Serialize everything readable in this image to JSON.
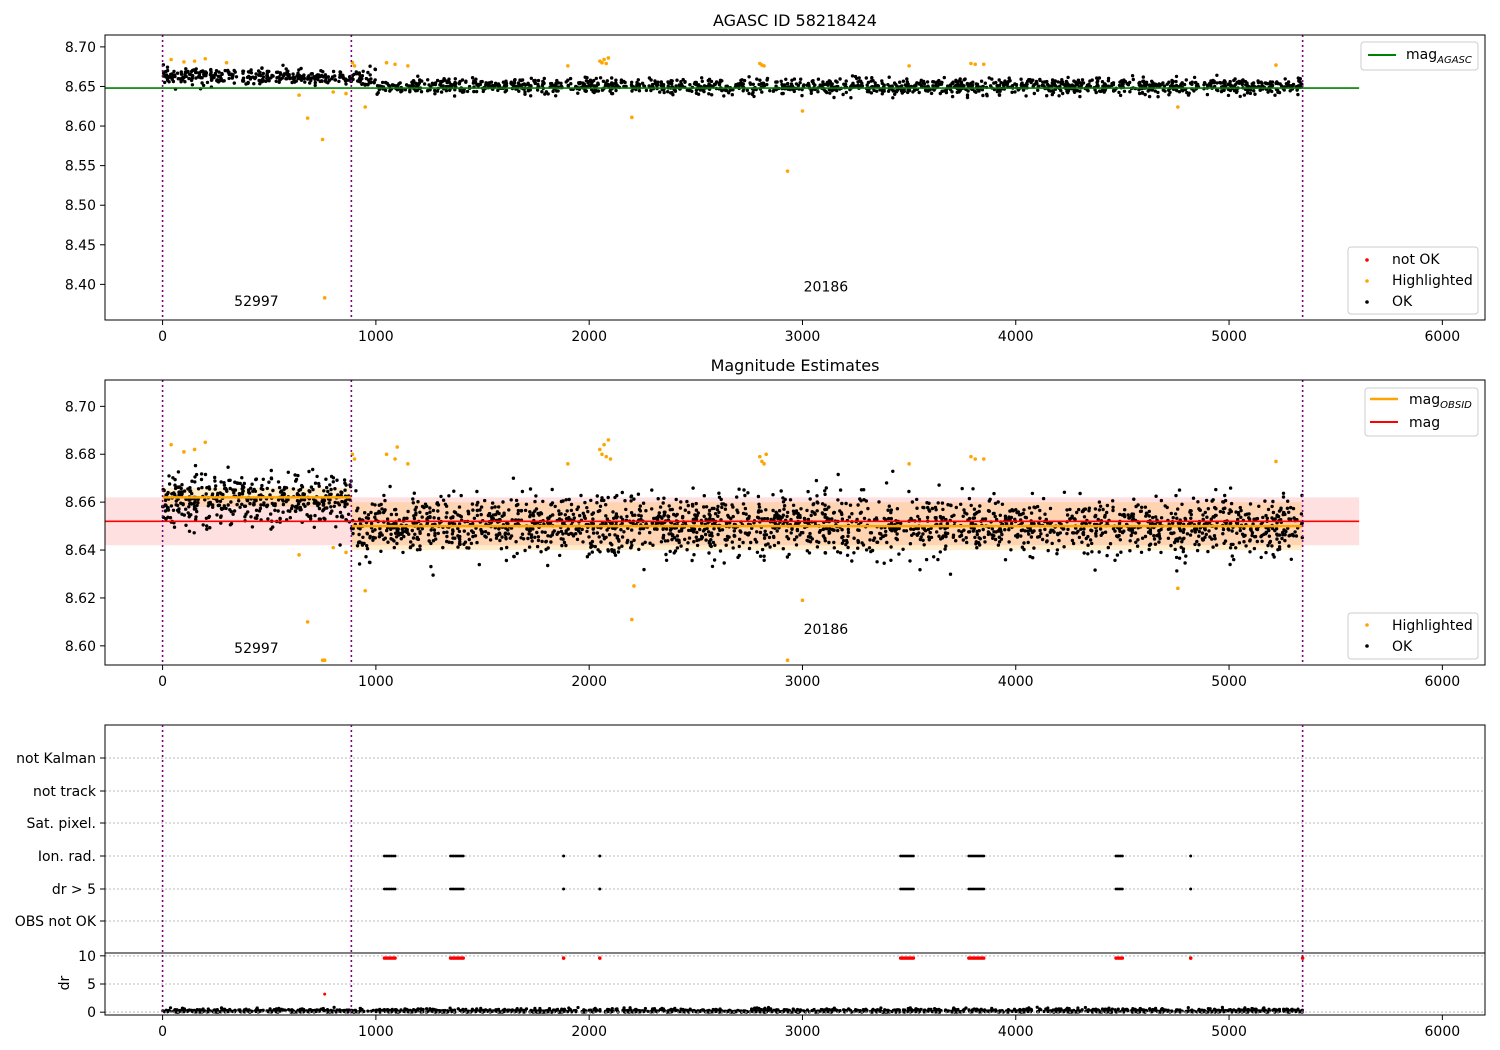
{
  "chart_data": [
    {
      "type": "scatter",
      "title": "AGASC ID 58218424",
      "xlim": [
        -270,
        6200
      ],
      "ylim": [
        8.355,
        8.715
      ],
      "xticks": [
        0,
        1000,
        2000,
        3000,
        4000,
        5000,
        6000
      ],
      "yticks": [
        8.4,
        8.45,
        8.5,
        8.55,
        8.6,
        8.65,
        8.7
      ],
      "yticklabels": [
        "8.40",
        "8.45",
        "8.50",
        "8.55",
        "8.60",
        "8.65",
        "8.70"
      ],
      "obs_boundaries": [
        0,
        885,
        5345
      ],
      "obs_labels": [
        {
          "text": "52997",
          "x": 440,
          "y": 8.373
        },
        {
          "text": "20186",
          "x": 3110,
          "y": 8.391
        }
      ],
      "mag_agasc": {
        "value": 8.648,
        "x_range": [
          -270,
          5610
        ],
        "color": "#008000"
      },
      "ok_band": {
        "center": 8.655,
        "spread": 0.014,
        "x_range": [
          0,
          5345
        ],
        "color": "#000000"
      },
      "highlighted": {
        "color": "#ffa500",
        "points": [
          [
            40,
            8.684
          ],
          [
            100,
            8.681
          ],
          [
            150,
            8.682
          ],
          [
            200,
            8.685
          ],
          [
            300,
            8.68
          ],
          [
            640,
            8.639
          ],
          [
            680,
            8.61
          ],
          [
            750,
            8.583
          ],
          [
            760,
            8.383
          ],
          [
            800,
            8.643
          ],
          [
            860,
            8.641
          ],
          [
            890,
            8.68
          ],
          [
            900,
            8.676
          ],
          [
            950,
            8.624
          ],
          [
            1050,
            8.68
          ],
          [
            1090,
            8.678
          ],
          [
            1150,
            8.676
          ],
          [
            1900,
            8.676
          ],
          [
            2050,
            8.682
          ],
          [
            2060,
            8.68
          ],
          [
            2070,
            8.684
          ],
          [
            2080,
            8.679
          ],
          [
            2090,
            8.686
          ],
          [
            2200,
            8.611
          ],
          [
            2800,
            8.679
          ],
          [
            2810,
            8.677
          ],
          [
            2820,
            8.676
          ],
          [
            2930,
            8.543
          ],
          [
            3000,
            8.619
          ],
          [
            3500,
            8.676
          ],
          [
            3790,
            8.679
          ],
          [
            3810,
            8.678
          ],
          [
            3850,
            8.678
          ],
          [
            4760,
            8.624
          ],
          [
            5220,
            8.677
          ]
        ]
      },
      "legend": [
        {
          "label": "not OK",
          "color": "#ff0000"
        },
        {
          "label": "Highlighted",
          "color": "#ffa500"
        },
        {
          "label": "OK",
          "color": "#000000"
        }
      ],
      "legend_top": {
        "label": "mag",
        "subscript": "AGASC",
        "color": "#008000"
      }
    },
    {
      "type": "scatter",
      "title": "Magnitude Estimates",
      "xlim": [
        -270,
        6200
      ],
      "ylim": [
        8.592,
        8.711
      ],
      "xticks": [
        0,
        1000,
        2000,
        3000,
        4000,
        5000,
        6000
      ],
      "yticks": [
        8.6,
        8.62,
        8.64,
        8.66,
        8.68,
        8.7
      ],
      "yticklabels": [
        "8.60",
        "8.62",
        "8.64",
        "8.66",
        "8.68",
        "8.70"
      ],
      "obs_boundaries": [
        0,
        885,
        5345
      ],
      "obs_labels": [
        {
          "text": "52997",
          "x": 440,
          "y": 8.597
        },
        {
          "text": "20186",
          "x": 3110,
          "y": 8.605
        }
      ],
      "mag": {
        "value": 8.652,
        "band": [
          8.642,
          8.662
        ],
        "x_range": [
          -270,
          5610
        ],
        "color": "#ff0000"
      },
      "mag_obsid": [
        {
          "value": 8.662,
          "band": [
            8.658,
            8.666
          ],
          "x_range": [
            0,
            885
          ]
        },
        {
          "value": 8.65,
          "band": [
            8.64,
            8.66
          ],
          "x_range": [
            885,
            5345
          ]
        }
      ],
      "ok_band": {
        "center": 8.652,
        "spread": 0.011,
        "x_range": [
          0,
          5345
        ],
        "color": "#000000"
      },
      "highlighted": {
        "color": "#ffa500",
        "points": [
          [
            40,
            8.684
          ],
          [
            100,
            8.681
          ],
          [
            150,
            8.682
          ],
          [
            200,
            8.685
          ],
          [
            640,
            8.638
          ],
          [
            680,
            8.61
          ],
          [
            750,
            8.594
          ],
          [
            760,
            8.594
          ],
          [
            800,
            8.641
          ],
          [
            860,
            8.639
          ],
          [
            890,
            8.68
          ],
          [
            900,
            8.678
          ],
          [
            950,
            8.623
          ],
          [
            1050,
            8.68
          ],
          [
            1090,
            8.678
          ],
          [
            1100,
            8.683
          ],
          [
            1150,
            8.676
          ],
          [
            1900,
            8.676
          ],
          [
            2050,
            8.682
          ],
          [
            2060,
            8.68
          ],
          [
            2070,
            8.684
          ],
          [
            2080,
            8.679
          ],
          [
            2090,
            8.686
          ],
          [
            2100,
            8.678
          ],
          [
            2200,
            8.611
          ],
          [
            2210,
            8.625
          ],
          [
            2800,
            8.679
          ],
          [
            2810,
            8.677
          ],
          [
            2820,
            8.676
          ],
          [
            2830,
            8.68
          ],
          [
            2930,
            8.594
          ],
          [
            3000,
            8.619
          ],
          [
            3500,
            8.676
          ],
          [
            3790,
            8.679
          ],
          [
            3810,
            8.678
          ],
          [
            3850,
            8.678
          ],
          [
            4760,
            8.624
          ],
          [
            5220,
            8.677
          ]
        ]
      },
      "legend": [
        {
          "label": "Highlighted",
          "color": "#ffa500"
        },
        {
          "label": "OK",
          "color": "#000000"
        }
      ],
      "legend_top": [
        {
          "label": "mag",
          "subscript": "OBSID",
          "color": "#ffa500"
        },
        {
          "label": "mag",
          "subscript": "",
          "color": "#ff0000"
        }
      ]
    },
    {
      "type": "scatter",
      "xlim": [
        -270,
        6200
      ],
      "flags": [
        "not Kalman",
        "not track",
        "Sat. pixel.",
        "Ion. rad.",
        "dr > 5",
        "OBS not OK"
      ],
      "flag_clusters": {
        "Ion. rad.": [
          [
            1040,
            1090
          ],
          [
            1350,
            1410
          ],
          [
            1880,
            1880
          ],
          [
            2050,
            2050
          ],
          [
            3460,
            3520
          ],
          [
            3780,
            3850
          ],
          [
            4470,
            4500
          ],
          [
            4820,
            4820
          ]
        ],
        "dr > 5": [
          [
            1040,
            1090
          ],
          [
            1350,
            1410
          ],
          [
            1880,
            1880
          ],
          [
            2050,
            2050
          ],
          [
            3460,
            3520
          ],
          [
            3780,
            3850
          ],
          [
            4470,
            4500
          ],
          [
            4820,
            4820
          ]
        ]
      },
      "obs_boundaries": [
        0,
        885,
        5345
      ]
    },
    {
      "type": "scatter",
      "ylabel": "dr",
      "xlim": [
        -270,
        6200
      ],
      "ylim": [
        -0.5,
        10.5
      ],
      "xticks": [
        0,
        1000,
        2000,
        3000,
        4000,
        5000,
        6000
      ],
      "yticks": [
        0,
        5,
        10
      ],
      "yticklabels": [
        "0",
        "5",
        "10"
      ],
      "obs_boundaries": [
        0,
        885,
        5345
      ],
      "high_dr_clusters": [
        [
          1040,
          1090
        ],
        [
          1350,
          1410
        ],
        [
          1880,
          1880
        ],
        [
          2050,
          2050
        ],
        [
          3460,
          3520
        ],
        [
          3780,
          3850
        ],
        [
          4470,
          4500
        ],
        [
          4820,
          4820
        ],
        [
          5345,
          5345
        ]
      ],
      "high_dr_value": 9.6,
      "outlier": [
        760,
        3.2
      ]
    }
  ]
}
